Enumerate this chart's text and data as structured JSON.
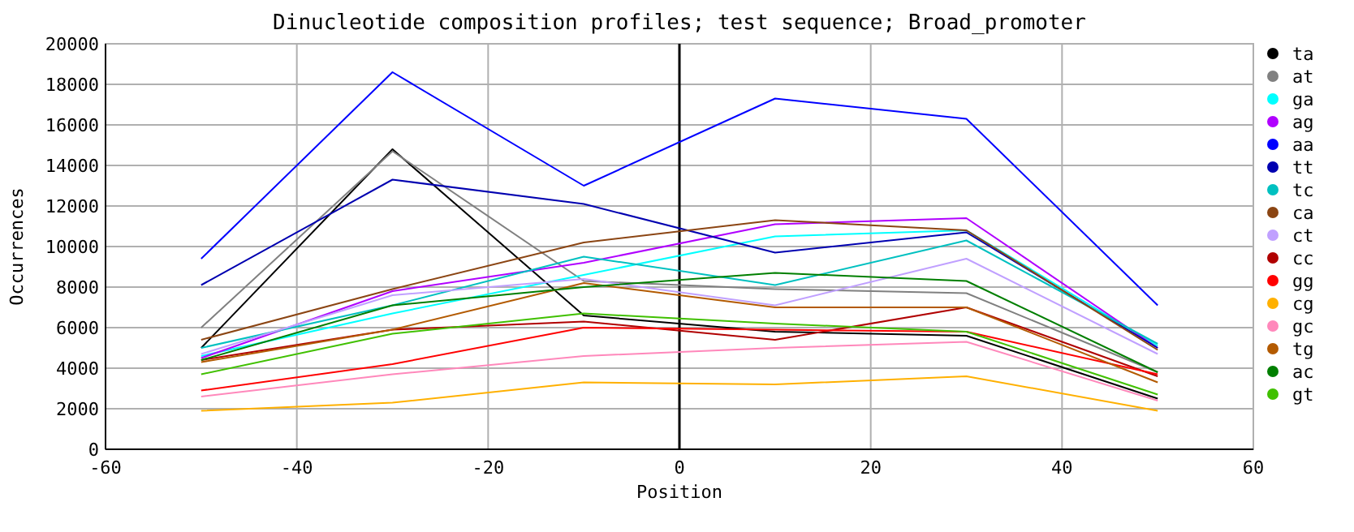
{
  "chart_data": {
    "type": "line",
    "title": "Dinucleotide composition profiles; test sequence; Broad_promoter",
    "xlabel": "Position",
    "ylabel": "Occurrences",
    "x": [
      -50,
      -30,
      -10,
      10,
      30,
      50
    ],
    "xlim": [
      -60,
      60
    ],
    "xticks": [
      -60,
      -40,
      -20,
      0,
      20,
      40,
      60
    ],
    "ylim": [
      0,
      20000
    ],
    "yticks": [
      0,
      2000,
      4000,
      6000,
      8000,
      10000,
      12000,
      14000,
      16000,
      18000,
      20000
    ],
    "grid": true,
    "legend": "right",
    "marker": "none",
    "line_style": "solid",
    "ref_lines": [
      {
        "axis": "x",
        "value": 0,
        "color": "#000000"
      }
    ],
    "series": [
      {
        "name": "ta",
        "color": "#000000",
        "values": [
          5000,
          14800,
          6600,
          5800,
          5600,
          2500
        ]
      },
      {
        "name": "at",
        "color": "#808080",
        "values": [
          6000,
          14700,
          8300,
          7900,
          7700,
          3800
        ]
      },
      {
        "name": "ga",
        "color": "#00ffff",
        "values": [
          4600,
          6700,
          8600,
          10500,
          10800,
          5100
        ]
      },
      {
        "name": "ag",
        "color": "#b000ff",
        "values": [
          4500,
          7800,
          9200,
          11100,
          11400,
          5000
        ]
      },
      {
        "name": "aa",
        "color": "#0000ff",
        "values": [
          9400,
          18600,
          13000,
          17300,
          16300,
          7100
        ]
      },
      {
        "name": "tt",
        "color": "#0000b0",
        "values": [
          8100,
          13300,
          12100,
          9700,
          10700,
          5000
        ]
      },
      {
        "name": "tc",
        "color": "#00c0c0",
        "values": [
          5000,
          7100,
          9500,
          8100,
          10300,
          5200
        ]
      },
      {
        "name": "ca",
        "color": "#8b4513",
        "values": [
          5400,
          7900,
          10200,
          11300,
          10800,
          4900
        ]
      },
      {
        "name": "ct",
        "color": "#c0a0ff",
        "values": [
          4700,
          7600,
          8400,
          7100,
          9400,
          4700
        ]
      },
      {
        "name": "cc",
        "color": "#b00000",
        "values": [
          4400,
          5900,
          6300,
          5400,
          7000,
          3600
        ]
      },
      {
        "name": "gg",
        "color": "#ff0000",
        "values": [
          2900,
          4200,
          6000,
          5900,
          5800,
          3700
        ]
      },
      {
        "name": "cg",
        "color": "#ffb000",
        "values": [
          1900,
          2300,
          3300,
          3200,
          3600,
          1900
        ]
      },
      {
        "name": "gc",
        "color": "#ff88bb",
        "values": [
          2600,
          3700,
          4600,
          5000,
          5300,
          2400
        ]
      },
      {
        "name": "tg",
        "color": "#b35a00",
        "values": [
          4300,
          5900,
          8200,
          7000,
          7000,
          3300
        ]
      },
      {
        "name": "ac",
        "color": "#007f00",
        "values": [
          4400,
          7100,
          8000,
          8700,
          8300,
          3800
        ]
      },
      {
        "name": "gt",
        "color": "#40c000",
        "values": [
          3700,
          5700,
          6700,
          6200,
          5800,
          2700
        ]
      }
    ]
  }
}
